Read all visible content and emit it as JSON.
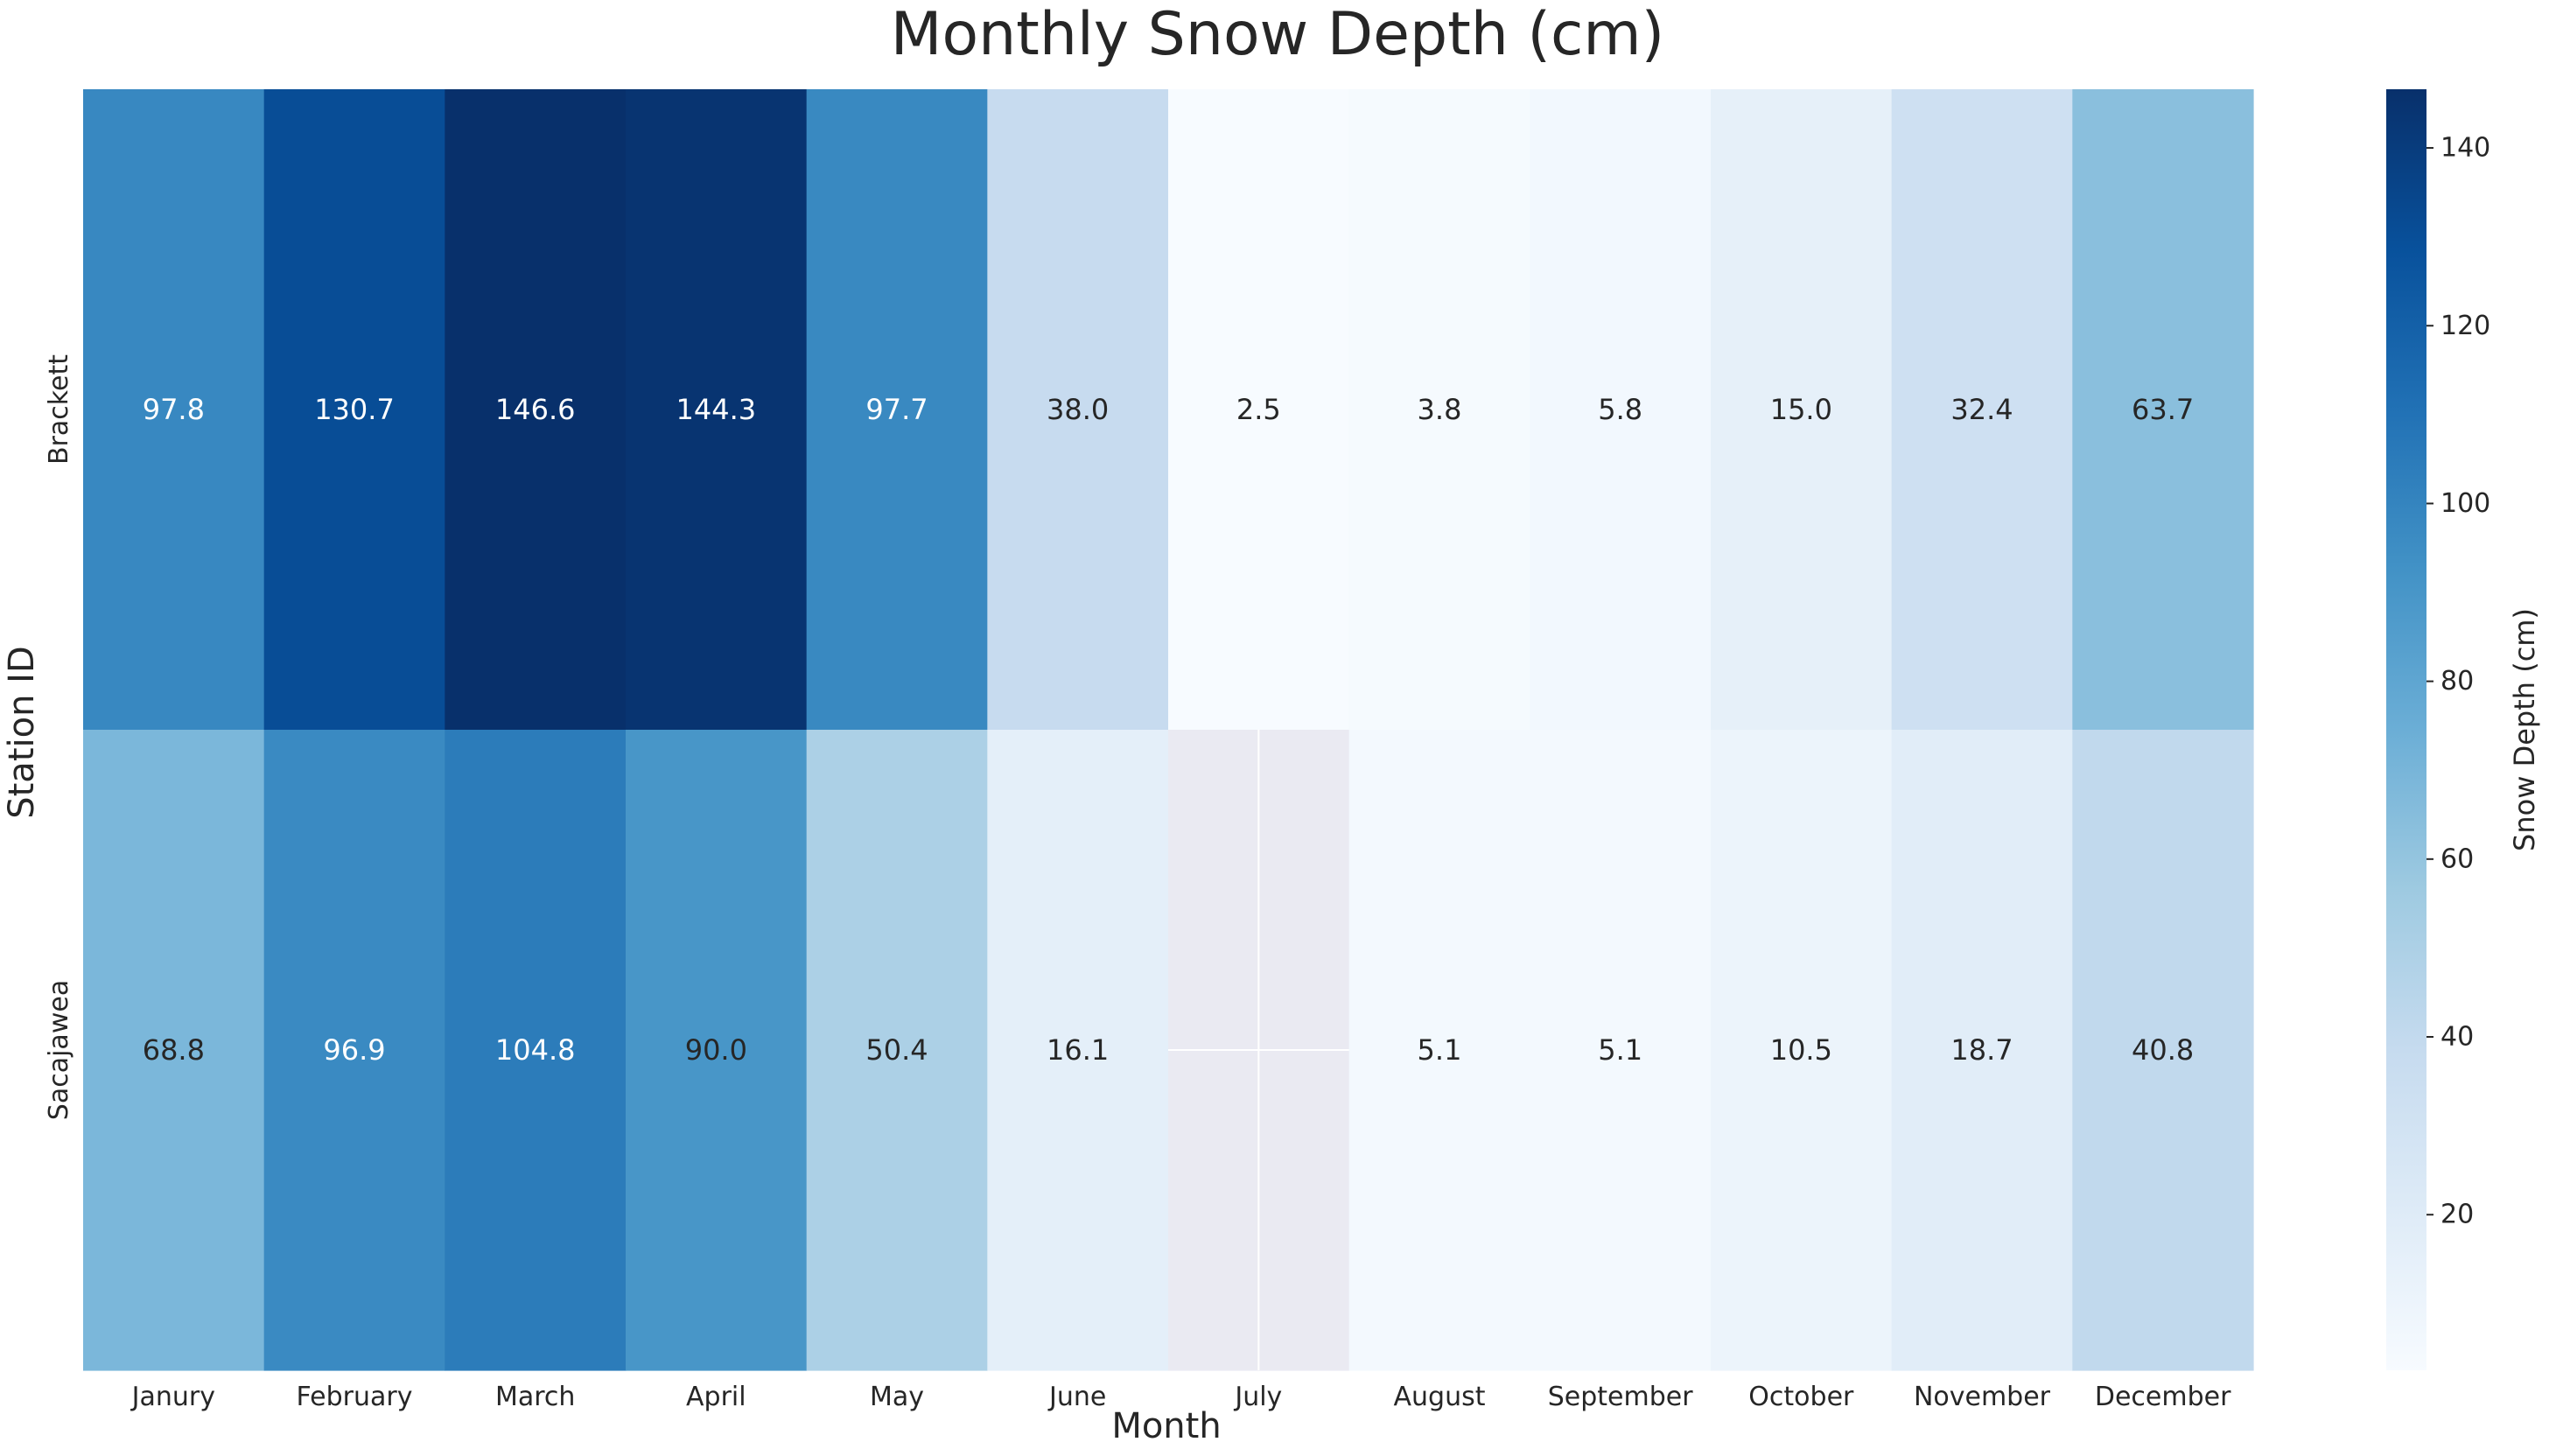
{
  "chart_data": {
    "type": "heatmap",
    "title": "Monthly Snow Depth (cm)",
    "xlabel": "Month",
    "ylabel": "Station ID",
    "x_categories": [
      "Janury",
      "February",
      "March",
      "April",
      "May",
      "June",
      "July",
      "August",
      "September",
      "October",
      "November",
      "December"
    ],
    "y_categories": [
      "Brackett",
      "Sacajawea"
    ],
    "values": [
      [
        97.8,
        130.7,
        146.6,
        144.3,
        97.7,
        38.0,
        2.5,
        3.8,
        5.8,
        15.0,
        32.4,
        63.7
      ],
      [
        68.8,
        96.9,
        104.8,
        90.0,
        50.4,
        16.1,
        null,
        5.1,
        5.1,
        10.5,
        18.7,
        40.8
      ]
    ],
    "value_format": "0.0",
    "colormap": "Blues",
    "missing_color": "#eaeaf2",
    "missing_grid_color": "#ffffff",
    "colorbar": {
      "label": "Snow Depth (cm)",
      "vmin": 2.5,
      "vmax": 146.6,
      "ticks": [
        20,
        40,
        60,
        80,
        100,
        120,
        140
      ]
    }
  }
}
